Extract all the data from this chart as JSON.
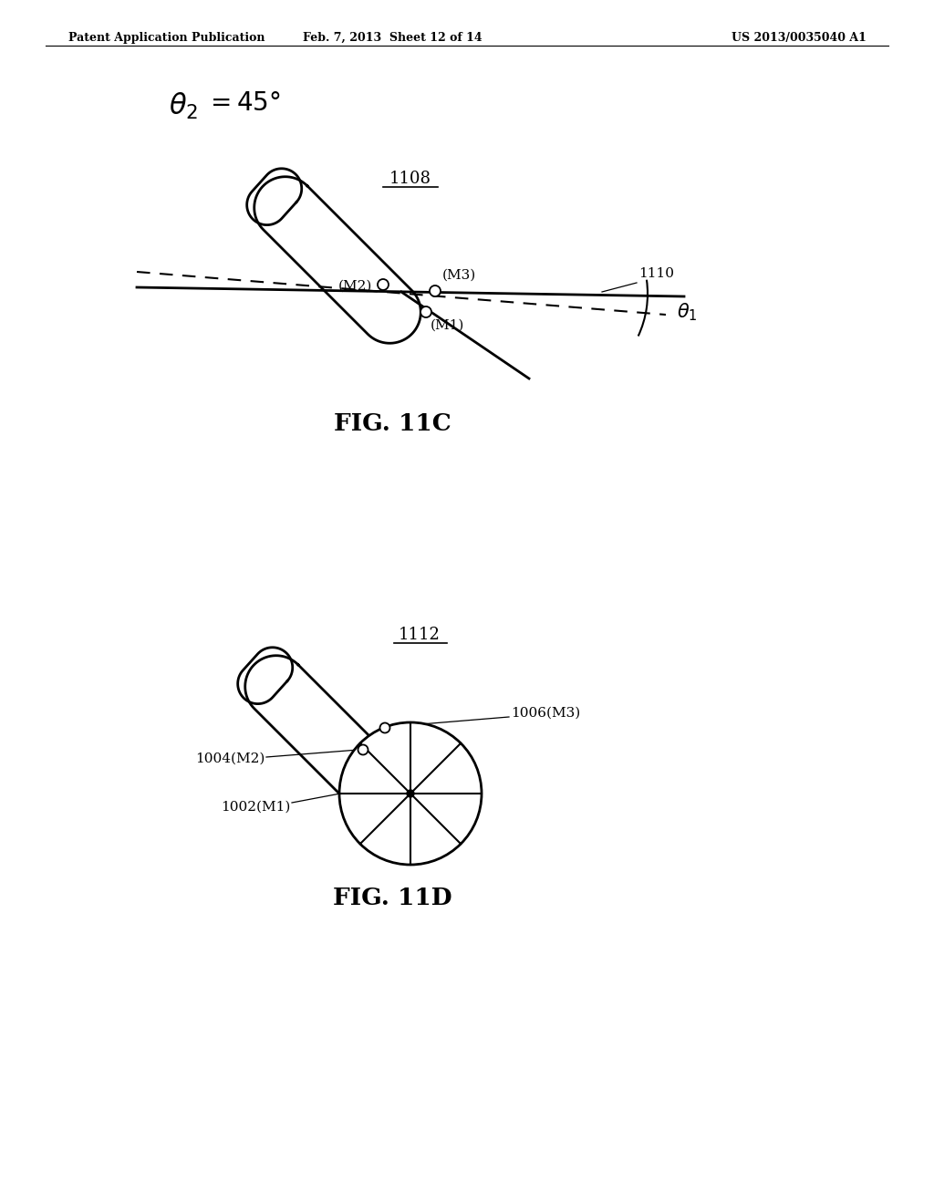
{
  "background_color": "#ffffff",
  "header_left": "Patent Application Publication",
  "header_mid": "Feb. 7, 2013  Sheet 12 of 14",
  "header_right": "US 2013/0035040 A1",
  "fig11c_label": "FIG. 11C",
  "fig11d_label": "FIG. 11D",
  "label_1108": "1108",
  "label_1110": "1110",
  "label_1112": "1112",
  "label_m1_11c": "(M1)",
  "label_m2_11c": "(M2)",
  "label_m3_11c": "(M3)",
  "label_1002": "1002(M1)",
  "label_1004": "1004(M2)",
  "label_1006": "1006(M3)",
  "line_color": "#000000",
  "lw": 1.5,
  "lw_thick": 2.0
}
